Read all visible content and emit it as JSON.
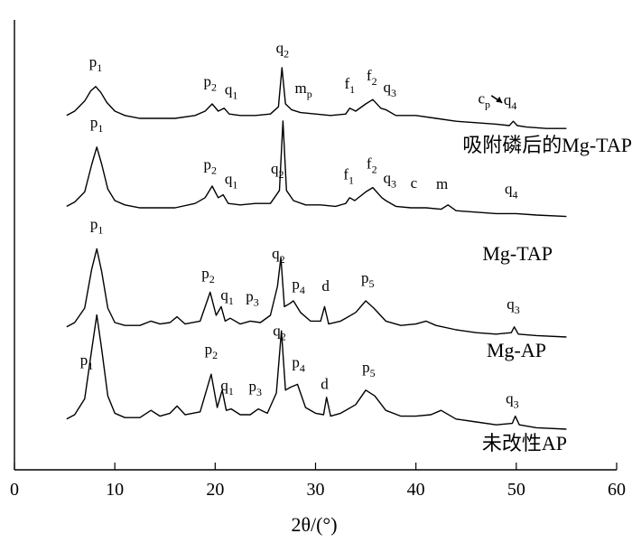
{
  "chart_data": {
    "type": "line",
    "xlabel": "2θ/(°)",
    "ylabel": "",
    "xlim": [
      0,
      60
    ],
    "xticks": [
      0,
      10,
      20,
      30,
      40,
      50,
      60
    ],
    "y_ticks_shown": false,
    "grid": false,
    "legend": "series labels placed under each curve on the right",
    "series": [
      {
        "name": "吸附磷后的Mg-TAP",
        "x": [
          5.2,
          6.0,
          7.0,
          7.6,
          8.1,
          8.6,
          9.2,
          10.0,
          11.0,
          12.5,
          14.0,
          16.0,
          18.0,
          19.0,
          19.7,
          20.3,
          20.9,
          21.4,
          22.5,
          24.0,
          25.5,
          26.3,
          26.65,
          27.0,
          27.6,
          28.5,
          30.0,
          31.5,
          33.0,
          33.4,
          34.0,
          35.0,
          35.7,
          36.5,
          37.0,
          38.0,
          40.0,
          42.0,
          44.0,
          46.0,
          48.0,
          49.3,
          49.7,
          50.1,
          51.0,
          53.0,
          55.0
        ],
        "y": [
          0.02,
          0.05,
          0.12,
          0.19,
          0.22,
          0.18,
          0.11,
          0.05,
          0.02,
          0.0,
          0.0,
          0.0,
          0.02,
          0.05,
          0.1,
          0.05,
          0.07,
          0.03,
          0.02,
          0.02,
          0.03,
          0.08,
          0.35,
          0.1,
          0.06,
          0.04,
          0.03,
          0.02,
          0.03,
          0.07,
          0.05,
          0.1,
          0.13,
          0.07,
          0.06,
          0.02,
          0.02,
          0.0,
          -0.02,
          -0.03,
          -0.04,
          -0.05,
          -0.02,
          -0.05,
          -0.06,
          -0.07,
          -0.07
        ]
      },
      {
        "name": "Mg-TAP",
        "x": [
          5.2,
          6.0,
          7.0,
          7.7,
          8.2,
          8.7,
          9.3,
          10.0,
          11.0,
          12.5,
          14.0,
          16.0,
          18.0,
          19.0,
          19.7,
          20.3,
          20.8,
          21.3,
          22.5,
          24.0,
          25.5,
          26.4,
          26.75,
          27.1,
          27.8,
          29.0,
          30.5,
          32.0,
          33.0,
          33.4,
          33.9,
          35.0,
          35.7,
          36.6,
          37.0,
          38.0,
          39.5,
          41.0,
          42.5,
          43.2,
          44.0,
          46.0,
          48.0,
          50.0,
          52.0,
          55.0
        ],
        "y": [
          0.01,
          0.04,
          0.11,
          0.3,
          0.42,
          0.3,
          0.13,
          0.05,
          0.02,
          0.0,
          0.0,
          0.0,
          0.03,
          0.07,
          0.15,
          0.07,
          0.09,
          0.03,
          0.02,
          0.03,
          0.03,
          0.12,
          0.6,
          0.12,
          0.05,
          0.02,
          0.02,
          0.01,
          0.03,
          0.07,
          0.05,
          0.11,
          0.14,
          0.07,
          0.05,
          0.01,
          0.0,
          0.0,
          -0.01,
          0.02,
          -0.02,
          -0.03,
          -0.04,
          -0.04,
          -0.05,
          -0.06
        ]
      },
      {
        "name": "Mg-AP",
        "x": [
          5.2,
          6.0,
          7.0,
          7.7,
          8.2,
          8.7,
          9.3,
          10.0,
          11.0,
          12.5,
          13.6,
          14.5,
          15.5,
          16.2,
          17.0,
          18.5,
          19.5,
          20.1,
          20.6,
          21.0,
          21.5,
          22.5,
          23.5,
          24.5,
          25.5,
          26.2,
          26.55,
          26.9,
          27.4,
          27.8,
          28.5,
          29.5,
          30.5,
          30.9,
          31.3,
          32.5,
          34.0,
          35.0,
          35.8,
          37.0,
          38.5,
          40.0,
          41.0,
          42.0,
          44.0,
          46.0,
          48.0,
          49.5,
          49.8,
          50.2,
          52.0,
          55.0
        ],
        "y": [
          0.02,
          0.05,
          0.15,
          0.42,
          0.56,
          0.4,
          0.15,
          0.05,
          0.03,
          0.03,
          0.06,
          0.04,
          0.05,
          0.09,
          0.04,
          0.06,
          0.26,
          0.1,
          0.16,
          0.06,
          0.08,
          0.04,
          0.06,
          0.05,
          0.1,
          0.3,
          0.5,
          0.16,
          0.18,
          0.2,
          0.12,
          0.06,
          0.06,
          0.16,
          0.04,
          0.06,
          0.12,
          0.2,
          0.15,
          0.06,
          0.03,
          0.04,
          0.06,
          0.03,
          0.0,
          -0.02,
          -0.03,
          -0.02,
          0.02,
          -0.03,
          -0.04,
          -0.05
        ]
      },
      {
        "name": "未改性AP",
        "x": [
          5.2,
          6.0,
          7.0,
          7.7,
          8.2,
          8.7,
          9.3,
          10.0,
          11.0,
          12.5,
          13.6,
          14.5,
          15.5,
          16.2,
          17.0,
          18.5,
          19.6,
          20.2,
          20.7,
          21.1,
          21.6,
          22.5,
          23.5,
          24.3,
          25.2,
          26.1,
          26.6,
          27.0,
          27.5,
          28.2,
          29.0,
          30.0,
          30.8,
          31.1,
          31.5,
          32.5,
          34.0,
          35.0,
          35.9,
          37.0,
          38.5,
          40.0,
          41.5,
          42.5,
          44.0,
          46.0,
          48.0,
          49.6,
          49.9,
          50.3,
          52.0,
          55.0
        ],
        "y": [
          0.02,
          0.05,
          0.16,
          0.5,
          0.74,
          0.5,
          0.18,
          0.06,
          0.03,
          0.03,
          0.08,
          0.04,
          0.06,
          0.11,
          0.05,
          0.07,
          0.33,
          0.1,
          0.22,
          0.08,
          0.09,
          0.05,
          0.05,
          0.09,
          0.06,
          0.2,
          0.63,
          0.22,
          0.24,
          0.26,
          0.1,
          0.06,
          0.05,
          0.17,
          0.04,
          0.06,
          0.12,
          0.22,
          0.18,
          0.08,
          0.04,
          0.04,
          0.05,
          0.08,
          0.02,
          0.0,
          -0.02,
          -0.01,
          0.04,
          -0.02,
          -0.04,
          -0.05
        ]
      }
    ],
    "annotations": [
      {
        "series": "吸附磷后的Mg-TAP",
        "labels": [
          {
            "x": 8.1,
            "t": "p",
            "s": "1"
          },
          {
            "x": 19.5,
            "t": "p",
            "s": "2"
          },
          {
            "x": 21.6,
            "t": "q",
            "s": "1"
          },
          {
            "x": 26.7,
            "t": "q",
            "s": "2"
          },
          {
            "x": 28.8,
            "t": "m",
            "s": "p"
          },
          {
            "x": 33.4,
            "t": "f",
            "s": "1"
          },
          {
            "x": 35.6,
            "t": "f",
            "s": "2"
          },
          {
            "x": 37.4,
            "t": "q",
            "s": "3"
          },
          {
            "x": 46.8,
            "t": "c",
            "s": "p"
          },
          {
            "x": 49.4,
            "t": "q",
            "s": "4"
          }
        ]
      },
      {
        "series": "Mg-TAP",
        "labels": [
          {
            "x": 8.2,
            "t": "p",
            "s": "1"
          },
          {
            "x": 19.5,
            "t": "p",
            "s": "2"
          },
          {
            "x": 21.6,
            "t": "q",
            "s": "1"
          },
          {
            "x": 26.2,
            "t": "q",
            "s": "2"
          },
          {
            "x": 33.3,
            "t": "f",
            "s": "1"
          },
          {
            "x": 35.6,
            "t": "f",
            "s": "2"
          },
          {
            "x": 37.4,
            "t": "q",
            "s": "3"
          },
          {
            "x": 39.8,
            "t": "c",
            "s": ""
          },
          {
            "x": 42.6,
            "t": "m",
            "s": ""
          },
          {
            "x": 49.5,
            "t": "q",
            "s": "4"
          }
        ]
      },
      {
        "series": "Mg-AP",
        "labels": [
          {
            "x": 8.2,
            "t": "p",
            "s": "1"
          },
          {
            "x": 19.3,
            "t": "p",
            "s": "2"
          },
          {
            "x": 21.2,
            "t": "q",
            "s": "1"
          },
          {
            "x": 23.7,
            "t": "p",
            "s": "3"
          },
          {
            "x": 26.3,
            "t": "q",
            "s": "2"
          },
          {
            "x": 28.3,
            "t": "p",
            "s": "4"
          },
          {
            "x": 31.0,
            "t": "d",
            "s": ""
          },
          {
            "x": 35.2,
            "t": "p",
            "s": "5"
          },
          {
            "x": 49.7,
            "t": "q",
            "s": "3"
          }
        ]
      },
      {
        "series": "未改性AP",
        "labels": [
          {
            "x": 7.2,
            "t": "p",
            "s": "1"
          },
          {
            "x": 19.6,
            "t": "p",
            "s": "2"
          },
          {
            "x": 21.2,
            "t": "q",
            "s": "1"
          },
          {
            "x": 24.0,
            "t": "p",
            "s": "3"
          },
          {
            "x": 26.4,
            "t": "q",
            "s": "2"
          },
          {
            "x": 28.3,
            "t": "p",
            "s": "4"
          },
          {
            "x": 30.9,
            "t": "d",
            "s": ""
          },
          {
            "x": 35.3,
            "t": "p",
            "s": "5"
          },
          {
            "x": 49.6,
            "t": "q",
            "s": "3"
          }
        ]
      }
    ]
  }
}
